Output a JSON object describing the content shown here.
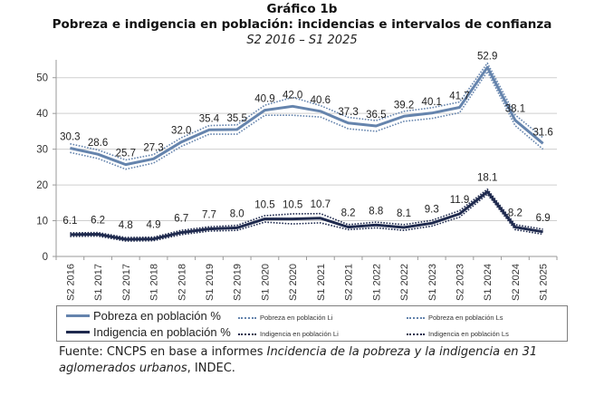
{
  "header": {
    "figure_number": "Gráfico 1b",
    "title": "Pobreza e indigencia en población: incidencias e intervalos de confianza",
    "subtitle": "S2 2016 – S1 2025"
  },
  "colors": {
    "pobreza": "#6584ad",
    "indigencia": "#1f2a4e",
    "grid": "#cfcfcf",
    "axis": "#9a9a9a"
  },
  "chart_data": {
    "type": "line",
    "title": "Pobreza e indigencia en población: incidencias e intervalos de confianza",
    "subtitle": "S2 2016 – S1 2025",
    "xlabel": "",
    "ylabel": "",
    "ylim": [
      0,
      55
    ],
    "yticks": [
      0,
      10,
      20,
      30,
      40,
      50
    ],
    "grid": true,
    "legend_position": "bottom",
    "categories": [
      "S2 2016",
      "S1 2017",
      "S2 2017",
      "S1 2018",
      "S2 2018",
      "S1 2019",
      "S2 2019",
      "S1 2020",
      "S2 2020",
      "S1 2021",
      "S2 2021",
      "S1 2022",
      "S2 2022",
      "S1 2023",
      "S2 2023",
      "S1 2024",
      "S2 2024",
      "S1 2025"
    ],
    "series": [
      {
        "name": "Pobreza en población %",
        "style": "solid",
        "labels": true,
        "values": [
          30.3,
          28.6,
          25.7,
          27.3,
          32.0,
          35.4,
          35.5,
          40.9,
          42.0,
          40.6,
          37.3,
          36.5,
          39.2,
          40.1,
          41.7,
          52.9,
          38.1,
          31.6
        ]
      },
      {
        "name": "Pobreza en población Li",
        "style": "dotted",
        "labels": false,
        "values": [
          29.1,
          27.4,
          24.4,
          26.1,
          30.8,
          34.2,
          34.2,
          39.5,
          39.5,
          39.0,
          35.7,
          35.0,
          37.8,
          38.6,
          40.2,
          51.7,
          36.6,
          30.0
        ]
      },
      {
        "name": "Pobreza en población Ls",
        "style": "dotted",
        "labels": false,
        "values": [
          31.5,
          29.8,
          27.0,
          28.5,
          33.2,
          36.6,
          36.8,
          42.3,
          44.5,
          42.2,
          38.9,
          38.0,
          40.6,
          41.6,
          43.2,
          54.1,
          39.6,
          33.2
        ]
      },
      {
        "name": "Indigencia en población %",
        "style": "solid",
        "labels": true,
        "values": [
          6.1,
          6.2,
          4.8,
          4.9,
          6.7,
          7.7,
          8.0,
          10.5,
          10.5,
          10.7,
          8.2,
          8.8,
          8.1,
          9.3,
          11.9,
          18.1,
          8.2,
          6.9
        ]
      },
      {
        "name": "Indigencia en población Li",
        "style": "dotted",
        "labels": false,
        "values": [
          5.6,
          5.7,
          4.3,
          4.4,
          6.1,
          7.1,
          7.3,
          9.6,
          9.1,
          9.4,
          7.5,
          8.0,
          7.3,
          8.5,
          11.0,
          17.4,
          7.5,
          6.2
        ]
      },
      {
        "name": "Indigencia en población Ls",
        "style": "dotted",
        "labels": false,
        "values": [
          6.6,
          6.7,
          5.3,
          5.4,
          7.3,
          8.3,
          8.7,
          11.4,
          11.9,
          12.0,
          8.9,
          9.6,
          8.9,
          10.1,
          12.8,
          18.8,
          8.9,
          7.6
        ]
      }
    ]
  },
  "legend": [
    {
      "label": "Pobreza en población %",
      "kind": "solid",
      "color_key": "pobreza"
    },
    {
      "label": "Pobreza en población Li",
      "kind": "dotted",
      "color_key": "pobreza"
    },
    {
      "label": "Pobreza en población Ls",
      "kind": "dotted",
      "color_key": "pobreza"
    },
    {
      "label": "Indigencia en población %",
      "kind": "solid",
      "color_key": "indigencia"
    },
    {
      "label": "Indigencia en población Li",
      "kind": "dotted",
      "color_key": "indigencia"
    },
    {
      "label": "Indigencia en población Ls",
      "kind": "dotted",
      "color_key": "indigencia"
    }
  ],
  "source": {
    "prefix": "Fuente: CNCPS en base a informes ",
    "italic": "Incidencia de la pobreza y la indigencia en 31 aglomerados urbanos",
    "suffix": ", INDEC."
  }
}
